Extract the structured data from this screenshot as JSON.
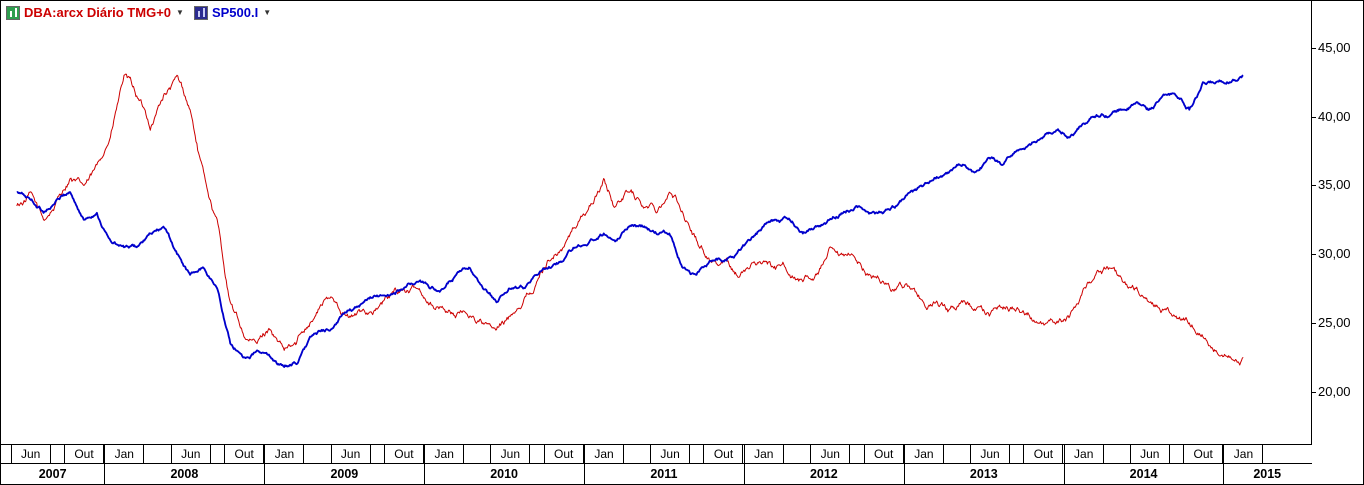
{
  "legend": {
    "dropdown_glyph": "▼",
    "series1": {
      "label": "DBA:arcx Diário TMG+0",
      "color": "#cc0000"
    },
    "series2": {
      "label": "SP500.I",
      "color": "#0000cc"
    }
  },
  "chart_data": {
    "type": "line",
    "title": "",
    "xlabel": "",
    "ylabel": "",
    "grid": false,
    "legend_position": "top-left",
    "ylim": [
      16.2,
      48.4
    ],
    "xlim": [
      "2007-05-10",
      "2015-07-20"
    ],
    "y_ticks": [
      {
        "label": "45,00",
        "value": 45
      },
      {
        "label": "40,00",
        "value": 40
      },
      {
        "label": "35,00",
        "value": 35
      },
      {
        "label": "30,00",
        "value": 30
      },
      {
        "label": "25,00",
        "value": 25
      },
      {
        "label": "20,00",
        "value": 20
      }
    ],
    "x_month_ticks": [
      {
        "label": "Jun",
        "date": "2007-06"
      },
      {
        "label": "Out",
        "date": "2007-10"
      },
      {
        "label": "Jan",
        "date": "2008-01"
      },
      {
        "label": "Jun",
        "date": "2008-06"
      },
      {
        "label": "Out",
        "date": "2008-10"
      },
      {
        "label": "Jan",
        "date": "2009-01"
      },
      {
        "label": "Jun",
        "date": "2009-06"
      },
      {
        "label": "Out",
        "date": "2009-10"
      },
      {
        "label": "Jan",
        "date": "2010-01"
      },
      {
        "label": "Jun",
        "date": "2010-06"
      },
      {
        "label": "Out",
        "date": "2010-10"
      },
      {
        "label": "Jan",
        "date": "2011-01"
      },
      {
        "label": "Jun",
        "date": "2011-06"
      },
      {
        "label": "Out",
        "date": "2011-10"
      },
      {
        "label": "Jan",
        "date": "2012-01"
      },
      {
        "label": "Jun",
        "date": "2012-06"
      },
      {
        "label": "Out",
        "date": "2012-10"
      },
      {
        "label": "Jan",
        "date": "2013-01"
      },
      {
        "label": "Jun",
        "date": "2013-06"
      },
      {
        "label": "Out",
        "date": "2013-10"
      },
      {
        "label": "Jan",
        "date": "2014-01"
      },
      {
        "label": "Jun",
        "date": "2014-06"
      },
      {
        "label": "Out",
        "date": "2014-10"
      },
      {
        "label": "Jan",
        "date": "2015-01"
      }
    ],
    "x_year_ticks": [
      "2007",
      "2008",
      "2009",
      "2010",
      "2011",
      "2012",
      "2013",
      "2014",
      "2015"
    ],
    "x": [
      "2007-06",
      "2007-07",
      "2007-08",
      "2007-09",
      "2007-10",
      "2007-11",
      "2007-12",
      "2008-01",
      "2008-02",
      "2008-03",
      "2008-04",
      "2008-05",
      "2008-06",
      "2008-07",
      "2008-08",
      "2008-09",
      "2008-10",
      "2008-11",
      "2008-12",
      "2009-01",
      "2009-02",
      "2009-03",
      "2009-04",
      "2009-05",
      "2009-06",
      "2009-07",
      "2009-08",
      "2009-09",
      "2009-10",
      "2009-11",
      "2009-12",
      "2010-01",
      "2010-02",
      "2010-03",
      "2010-04",
      "2010-05",
      "2010-06",
      "2010-07",
      "2010-08",
      "2010-09",
      "2010-10",
      "2010-11",
      "2010-12",
      "2011-01",
      "2011-02",
      "2011-03",
      "2011-04",
      "2011-05",
      "2011-06",
      "2011-07",
      "2011-08",
      "2011-09",
      "2011-10",
      "2011-11",
      "2011-12",
      "2012-01",
      "2012-02",
      "2012-03",
      "2012-04",
      "2012-05",
      "2012-06",
      "2012-07",
      "2012-08",
      "2012-09",
      "2012-10",
      "2012-11",
      "2012-12",
      "2013-01",
      "2013-02",
      "2013-03",
      "2013-04",
      "2013-05",
      "2013-06",
      "2013-07",
      "2013-08",
      "2013-09",
      "2013-10",
      "2013-11",
      "2013-12",
      "2014-01",
      "2014-02",
      "2014-03",
      "2014-04",
      "2014-05",
      "2014-06",
      "2014-07",
      "2014-08",
      "2014-09",
      "2014-10",
      "2014-11",
      "2014-12",
      "2015-01",
      "2015-02"
    ],
    "series": [
      {
        "name": "DBA:arcx Diário TMG+0",
        "color": "#cc0000",
        "values": [
          33.5,
          34.5,
          32.5,
          34,
          35.5,
          35,
          36.5,
          38.5,
          43,
          41.5,
          39,
          41.5,
          43,
          40.5,
          36,
          32.5,
          26.5,
          24,
          23.5,
          24.5,
          23,
          23.5,
          25,
          26.5,
          26.5,
          25.5,
          26,
          26,
          27,
          27.5,
          27.5,
          26.5,
          26,
          25.5,
          25.5,
          25,
          24.5,
          25.5,
          26.5,
          28,
          29.5,
          30.5,
          32,
          33.5,
          35.5,
          33.5,
          34.5,
          33.5,
          33,
          34.5,
          33,
          31,
          29.5,
          29.5,
          28.5,
          29,
          29.5,
          29,
          28.5,
          28,
          28.5,
          30.5,
          30,
          29.5,
          28.5,
          28,
          27.5,
          27.5,
          26.5,
          26.5,
          26,
          26.5,
          26,
          25.5,
          26,
          26,
          25.5,
          25,
          25,
          25.5,
          27.5,
          28.5,
          29,
          28,
          27.5,
          26.5,
          26,
          25.5,
          25,
          24,
          23,
          22.5,
          22.5
        ]
      },
      {
        "name": "SP500.I",
        "color": "#0000cc",
        "values": [
          34.5,
          34,
          33,
          34,
          34.5,
          32.5,
          33,
          31,
          30.5,
          30.5,
          31.5,
          32,
          30,
          28.5,
          29,
          27.5,
          23.5,
          22.5,
          23,
          22.5,
          21.8,
          22,
          24,
          24.5,
          25,
          26,
          26.5,
          27,
          27,
          27.5,
          28,
          27.5,
          27.5,
          28.5,
          29,
          27.5,
          26.5,
          27.5,
          27.5,
          28.5,
          29,
          29.5,
          30.5,
          31,
          31.5,
          31,
          32,
          32,
          31.5,
          31.5,
          29,
          28.5,
          29.5,
          29.5,
          30,
          31,
          32,
          32.5,
          32.5,
          31.5,
          32,
          32.5,
          33,
          33.5,
          33,
          33,
          33.5,
          34.5,
          35,
          35.5,
          36,
          36.5,
          36,
          37,
          36.5,
          37.5,
          38,
          38.5,
          39,
          38.5,
          39.5,
          40,
          40,
          40.5,
          41,
          40.5,
          41.5,
          41.5,
          40.5,
          42.5,
          42.5,
          42.5,
          43
        ]
      }
    ]
  }
}
